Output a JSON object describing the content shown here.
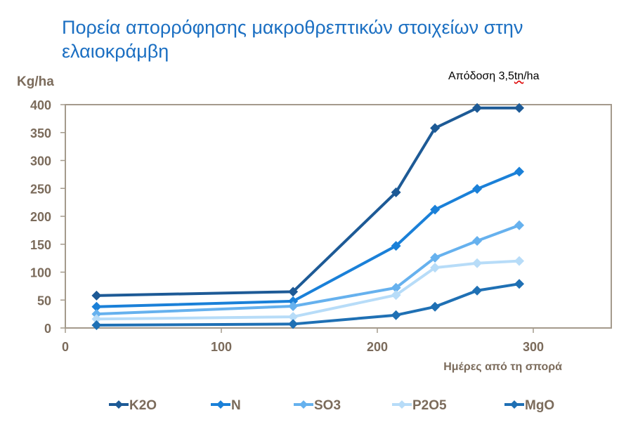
{
  "chart_data": {
    "type": "line",
    "title": "Πορεία απορρόφησης μακροθρεπτικών στοιχείων στην ελαιοκράμβη",
    "annotation": {
      "prefix": "Απόδοση 3,5",
      "underlined": "tn",
      "suffix": "/ha"
    },
    "xlabel": "Ημέρες από τη σπορά",
    "ylabel": "Kg/ha",
    "xlim": [
      0,
      350
    ],
    "ylim": [
      0,
      400
    ],
    "xticks": [
      "0",
      "100",
      "200",
      "300"
    ],
    "yticks": [
      "0",
      "50",
      "100",
      "150",
      "200",
      "250",
      "300",
      "350",
      "400"
    ],
    "grid": false,
    "legend_position": "bottom",
    "x": [
      20,
      146,
      212,
      237,
      264,
      291
    ],
    "series": [
      {
        "name": "K2O",
        "color": "#1d5a96",
        "values": [
          58,
          65,
          243,
          358,
          394,
          394
        ]
      },
      {
        "name": "N",
        "color": "#1a80d8",
        "values": [
          38,
          48,
          147,
          212,
          249,
          280
        ]
      },
      {
        "name": "SO3",
        "color": "#66b1ee",
        "values": [
          25,
          39,
          72,
          126,
          156,
          184
        ]
      },
      {
        "name": "P2O5",
        "color": "#b7dcf8",
        "values": [
          16,
          20,
          59,
          108,
          116,
          120
        ]
      },
      {
        "name": "MgO",
        "color": "#1f70b4",
        "values": [
          5,
          7,
          23,
          38,
          67,
          79
        ]
      }
    ]
  }
}
